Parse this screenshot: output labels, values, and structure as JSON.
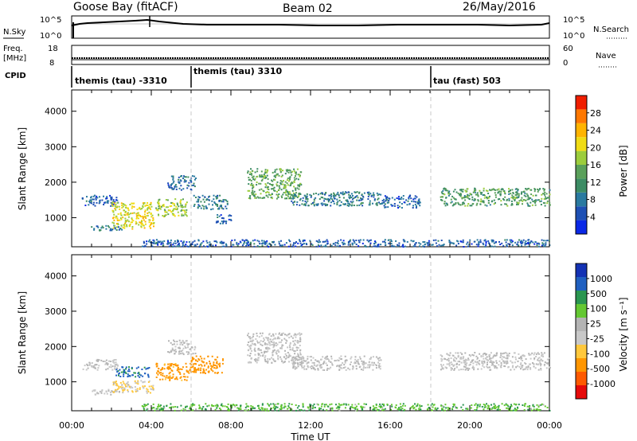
{
  "header": {
    "station": "Goose Bay (fitACF)",
    "beam": "Beam 02",
    "date": "26/May/2016"
  },
  "status_panels": {
    "nsky_label": "N.Sky",
    "nsky_ticks": [
      "10^5",
      "10^0"
    ],
    "nsearch_label": "N.Search",
    "nsearch_ticks": [
      "10^5",
      "10^0"
    ],
    "freq_label_1": "Freq.",
    "freq_label_2": "[MHz]",
    "freq_ticks": [
      "18",
      "8"
    ],
    "nave_label": "Nave",
    "nave_ticks": [
      "60",
      "0"
    ],
    "cpid_label": "CPID"
  },
  "cpid_segments": [
    {
      "label": "themis (tau) -3310",
      "start_hour": 0
    },
    {
      "label": "themis (tau) 3310",
      "start_hour": 6
    },
    {
      "label": "tau (fast) 503",
      "start_hour": 18
    }
  ],
  "axes": {
    "x_label": "Time UT",
    "x_ticks": [
      "00:00",
      "04:00",
      "08:00",
      "12:00",
      "16:00",
      "20:00",
      "00:00"
    ],
    "y_label": "Slant Range [km]",
    "y_ticks": [
      "1000",
      "2000",
      "3000",
      "4000"
    ]
  },
  "colors": {
    "power_scale": [
      "#0a28e6",
      "#1e50b4",
      "#2a7aa0",
      "#3c8c64",
      "#5aa05a",
      "#9ccd3c",
      "#f0dc14",
      "#ffb400",
      "#ff7800",
      "#f01e00"
    ],
    "velocity_scale": [
      "#e60a0a",
      "#ff5a00",
      "#ff9600",
      "#ffc83c",
      "#c8c8c8",
      "#b4b4b4",
      "#64c832",
      "#2a9650",
      "#2060c0",
      "#1432b4"
    ]
  },
  "chart_data": [
    {
      "type": "heatmap",
      "title": "Power",
      "xlabel": "Time UT",
      "ylabel": "Slant Range [km]",
      "colorbar_label": "Power [dB]",
      "colorbar_ticks": [
        "4",
        "8",
        "12",
        "16",
        "20",
        "24",
        "28"
      ],
      "xlim": [
        0,
        24
      ],
      "ylim": [
        180,
        4600
      ],
      "x_unit": "hours UT",
      "clim": [
        0,
        32
      ],
      "regions": [
        {
          "t0": 0.5,
          "t1": 2.3,
          "r0": 1350,
          "r1": 1650,
          "power": 6
        },
        {
          "t0": 0.9,
          "t1": 2.5,
          "r0": 650,
          "r1": 800,
          "power": 8
        },
        {
          "t0": 2.0,
          "t1": 4.1,
          "r0": 700,
          "r1": 1450,
          "power": 20
        },
        {
          "t0": 4.2,
          "t1": 5.8,
          "r0": 1050,
          "r1": 1550,
          "power": 18
        },
        {
          "t0": 4.8,
          "t1": 6.2,
          "r0": 1800,
          "r1": 2200,
          "power": 7
        },
        {
          "t0": 6.1,
          "t1": 7.8,
          "r0": 1250,
          "r1": 1650,
          "power": 9
        },
        {
          "t0": 7.2,
          "t1": 8.0,
          "r0": 850,
          "r1": 1100,
          "power": 6
        },
        {
          "t0": 8.8,
          "t1": 11.5,
          "r0": 1550,
          "r1": 2400,
          "power": 14
        },
        {
          "t0": 11.0,
          "t1": 15.5,
          "r0": 1350,
          "r1": 1750,
          "power": 9
        },
        {
          "t0": 15.5,
          "t1": 17.5,
          "r0": 1300,
          "r1": 1650,
          "power": 6
        },
        {
          "t0": 18.5,
          "t1": 24.0,
          "r0": 1350,
          "r1": 1850,
          "power": 13
        },
        {
          "t0": 3.5,
          "t1": 24.0,
          "r0": 200,
          "r1": 400,
          "power": 6
        }
      ]
    },
    {
      "type": "heatmap",
      "title": "Velocity",
      "xlabel": "Time UT",
      "ylabel": "Slant Range [km]",
      "colorbar_label": "Velocity [m s⁻¹]",
      "colorbar_ticks": [
        "-1000",
        "-500",
        "-100",
        "-25",
        "25",
        "100",
        "500",
        "1000"
      ],
      "xlim": [
        0,
        24
      ],
      "ylim": [
        180,
        4600
      ],
      "x_unit": "hours UT",
      "regions": [
        {
          "t0": 0.5,
          "t1": 2.3,
          "r0": 1350,
          "r1": 1650,
          "velocity": 0
        },
        {
          "t0": 0.9,
          "t1": 2.5,
          "r0": 650,
          "r1": 800,
          "velocity": 0
        },
        {
          "t0": 2.0,
          "t1": 4.1,
          "r0": 700,
          "r1": 1050,
          "velocity": -30
        },
        {
          "t0": 2.2,
          "t1": 3.9,
          "r0": 1150,
          "r1": 1450,
          "velocity": 600
        },
        {
          "t0": 4.2,
          "t1": 5.8,
          "r0": 1050,
          "r1": 1550,
          "velocity": -200
        },
        {
          "t0": 5.8,
          "t1": 7.6,
          "r0": 1250,
          "r1": 1750,
          "velocity": -300
        },
        {
          "t0": 4.8,
          "t1": 6.2,
          "r0": 1800,
          "r1": 2200,
          "velocity": 0
        },
        {
          "t0": 8.8,
          "t1": 11.5,
          "r0": 1550,
          "r1": 2400,
          "velocity": 0
        },
        {
          "t0": 11.0,
          "t1": 15.5,
          "r0": 1350,
          "r1": 1750,
          "velocity": 0
        },
        {
          "t0": 18.5,
          "t1": 24.0,
          "r0": 1350,
          "r1": 1850,
          "velocity": 0
        },
        {
          "t0": 3.5,
          "t1": 24.0,
          "r0": 200,
          "r1": 400,
          "velocity": 80
        }
      ]
    }
  ]
}
